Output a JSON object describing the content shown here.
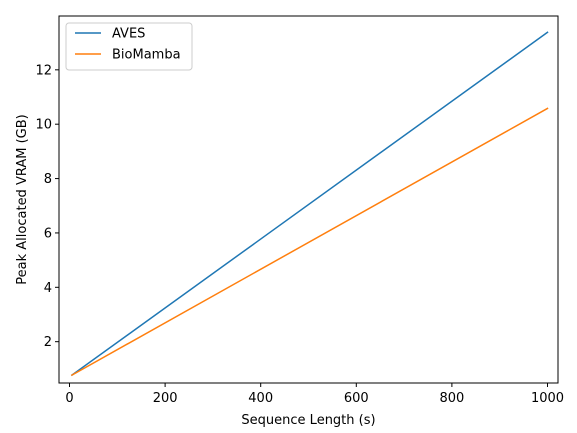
{
  "chart_data": {
    "type": "line",
    "xlabel": "Sequence Length (s)",
    "ylabel": "Peak Allocated VRAM (GB)",
    "xlim": [
      -22,
      1022
    ],
    "ylim": [
      0.48,
      13.98
    ],
    "xticks": [
      0,
      200,
      400,
      600,
      800,
      1000
    ],
    "yticks": [
      2,
      4,
      6,
      8,
      10,
      12
    ],
    "grid": false,
    "legend_position": "top-left",
    "series": [
      {
        "name": "AVES",
        "color": "#1f77b4",
        "x": [
          5,
          1000
        ],
        "y": [
          0.77,
          13.38
        ]
      },
      {
        "name": "BioMamba",
        "color": "#ff7f0e",
        "x": [
          5,
          1000
        ],
        "y": [
          0.77,
          10.58
        ]
      }
    ]
  }
}
